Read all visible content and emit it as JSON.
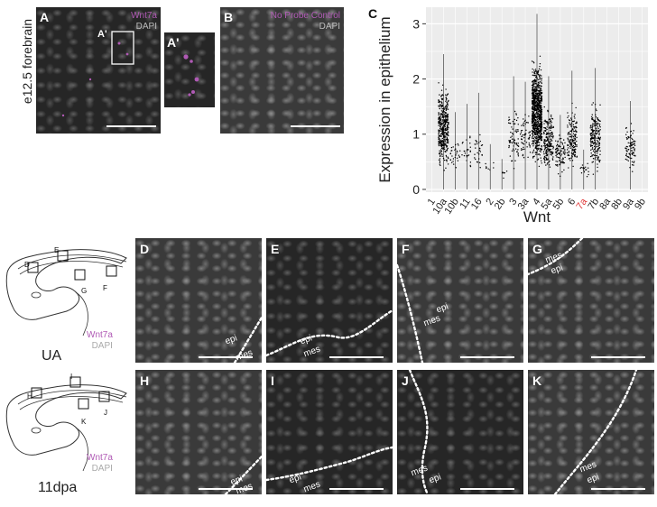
{
  "colors": {
    "wnt": "#b05ab5",
    "dapi": "#bdbdbd",
    "highlight": "#e03a3a"
  },
  "top_row": {
    "side_label": "e12.5 forebrain",
    "panel_A": {
      "letter": "A",
      "probe": "Wnt7a",
      "stain": "DAPI",
      "inset_letter": "A'"
    },
    "panel_A_prime": {
      "letter": "A'"
    },
    "panel_B": {
      "letter": "B",
      "probe": "No Probe Control",
      "stain": "DAPI"
    }
  },
  "panel_C": {
    "letter": "C"
  },
  "chart_data": {
    "type": "scatter",
    "ylabel": "Expression in epithelium",
    "xlabel": "Wnt",
    "yticks": [
      0,
      1,
      2,
      3
    ],
    "ylim": [
      -0.05,
      3.3
    ],
    "grid": true,
    "highlight_category": "7a",
    "categories": [
      "1",
      "10a",
      "10b",
      "11",
      "16",
      "2",
      "2b",
      "3",
      "3a",
      "4",
      "5a",
      "5b",
      "6",
      "7a",
      "7b",
      "8a",
      "8b",
      "9a",
      "9b"
    ],
    "stats": [
      {
        "cat": "1",
        "max": 0,
        "lo": 0,
        "hi": 0,
        "n": 0
      },
      {
        "cat": "10a",
        "max": 2.45,
        "lo": 0.25,
        "hi": 2.0,
        "n": 420
      },
      {
        "cat": "10b",
        "max": 1.4,
        "lo": 0.25,
        "hi": 1.0,
        "n": 30
      },
      {
        "cat": "11",
        "max": 1.55,
        "lo": 0.25,
        "hi": 1.1,
        "n": 25
      },
      {
        "cat": "16",
        "max": 1.75,
        "lo": 0.25,
        "hi": 1.2,
        "n": 28
      },
      {
        "cat": "2",
        "max": 0.82,
        "lo": 0.2,
        "hi": 0.6,
        "n": 8
      },
      {
        "cat": "2b",
        "max": 0.55,
        "lo": 0.15,
        "hi": 0.4,
        "n": 6
      },
      {
        "cat": "3",
        "max": 2.05,
        "lo": 0.25,
        "hi": 1.6,
        "n": 70
      },
      {
        "cat": "3a",
        "max": 1.95,
        "lo": 0.25,
        "hi": 1.5,
        "n": 60
      },
      {
        "cat": "4",
        "max": 3.18,
        "lo": 0.3,
        "hi": 2.5,
        "n": 900
      },
      {
        "cat": "5a",
        "max": 2.05,
        "lo": 0.2,
        "hi": 1.6,
        "n": 200
      },
      {
        "cat": "5b",
        "max": 1.35,
        "lo": 0.2,
        "hi": 1.1,
        "n": 90
      },
      {
        "cat": "6",
        "max": 2.15,
        "lo": 0.2,
        "hi": 1.6,
        "n": 160
      },
      {
        "cat": "7a",
        "max": 0.72,
        "lo": 0.15,
        "hi": 0.55,
        "n": 18
      },
      {
        "cat": "7b",
        "max": 2.2,
        "lo": 0.2,
        "hi": 1.7,
        "n": 200
      },
      {
        "cat": "8a",
        "max": 0,
        "lo": 0,
        "hi": 0,
        "n": 0
      },
      {
        "cat": "8b",
        "max": 0,
        "lo": 0,
        "hi": 0,
        "n": 0
      },
      {
        "cat": "9a",
        "max": 1.6,
        "lo": 0.25,
        "hi": 1.3,
        "n": 90
      },
      {
        "cat": "9b",
        "max": 0,
        "lo": 0,
        "hi": 0,
        "n": 0
      }
    ]
  },
  "schematics": [
    {
      "label": "UA",
      "probe": "Wnt7a",
      "stain": "DAPI",
      "box_labels": [
        "D",
        "E",
        "F",
        "G"
      ]
    },
    {
      "label": "11dpa",
      "probe": "Wnt7a",
      "stain": "DAPI",
      "box_labels": [
        "H",
        "I",
        "J",
        "K"
      ]
    }
  ],
  "bottom_panels": [
    {
      "letter": "D",
      "epi": "epi",
      "mes": "mes"
    },
    {
      "letter": "E",
      "epi": "epi",
      "mes": "mes"
    },
    {
      "letter": "F",
      "epi": "epi",
      "mes": "mes"
    },
    {
      "letter": "G",
      "epi": "epi",
      "mes": "mes"
    },
    {
      "letter": "H",
      "epi": "epi",
      "mes": "mes"
    },
    {
      "letter": "I",
      "epi": "epi",
      "mes": "mes"
    },
    {
      "letter": "J",
      "epi": "epi",
      "mes": "mes"
    },
    {
      "letter": "K",
      "epi": "epi",
      "mes": "mes"
    }
  ]
}
